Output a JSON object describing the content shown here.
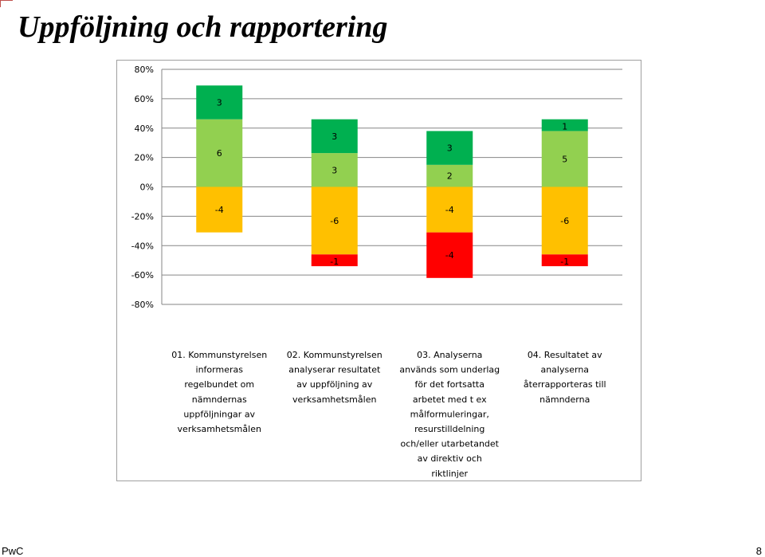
{
  "slide": {
    "title": "Uppföljning och rapportering",
    "footer_left": "PwC",
    "page_number": "8"
  },
  "chart_data": {
    "type": "bar",
    "stacked": true,
    "title": "",
    "xlabel": "",
    "ylabel": "",
    "ylim": [
      -0.8,
      0.8
    ],
    "y_ticks": [
      0.8,
      0.6,
      0.4,
      0.2,
      0,
      -0.2,
      -0.4,
      -0.6,
      -0.8
    ],
    "y_tick_labels": [
      "80%",
      "60%",
      "40%",
      "20%",
      "0%",
      "-20%",
      "-40%",
      "-60%",
      "-80%"
    ],
    "grid": true,
    "legend": "none",
    "categories": [
      "01. Kommunstyrelsen informeras regelbundet om nämndernas uppföljningar av verksamhetsmålen",
      "02. Kommunstyrelsen analyserar resultatet av uppföljning av verksamhetsmålen",
      "03. Analyserna används som underlag för det fortsatta arbetet med t ex målformuleringar, resurstilldelning och/eller utarbetandet av direktiv och riktlinjer",
      "04. Resultatet av analyserna återrapporteras till nämnderna"
    ],
    "category_label_lines": [
      [
        "01. Kommunstyrelsen",
        "informeras",
        "regelbundet om",
        "nämndernas",
        "uppföljningar av",
        "verksamhetsmålen"
      ],
      [
        "02. Kommunstyrelsen",
        "analyserar resultatet",
        "av uppföljning av",
        "verksamhetsmålen"
      ],
      [
        "03. Analyserna",
        "används som underlag",
        "för det fortsatta",
        "arbetet med t ex",
        "målformuleringar,",
        "resurstilldelning",
        "och/eller utarbetandet",
        "av direktiv och",
        "riktlinjer"
      ],
      [
        "04. Resultatet av",
        "analyserna",
        "återrapporteras till",
        "nämnderna"
      ]
    ],
    "series": [
      {
        "color": "#92d050",
        "share": [
          0.46,
          0.23,
          0.15,
          0.38
        ],
        "labels": [
          "6",
          "3",
          "2",
          "5"
        ]
      },
      {
        "color": "#00b050",
        "share": [
          0.23,
          0.23,
          0.23,
          0.08
        ],
        "labels": [
          "3",
          "3",
          "3",
          "1"
        ]
      },
      {
        "color": "#ffc000",
        "share": [
          -0.31,
          -0.46,
          -0.31,
          -0.46
        ],
        "labels": [
          "-4",
          "-6",
          "-4",
          "-6"
        ]
      },
      {
        "color": "#ff0000",
        "share": [
          0,
          -0.08,
          -0.31,
          -0.08
        ],
        "labels": [
          "",
          "-1",
          "-4",
          "-1"
        ]
      }
    ]
  }
}
